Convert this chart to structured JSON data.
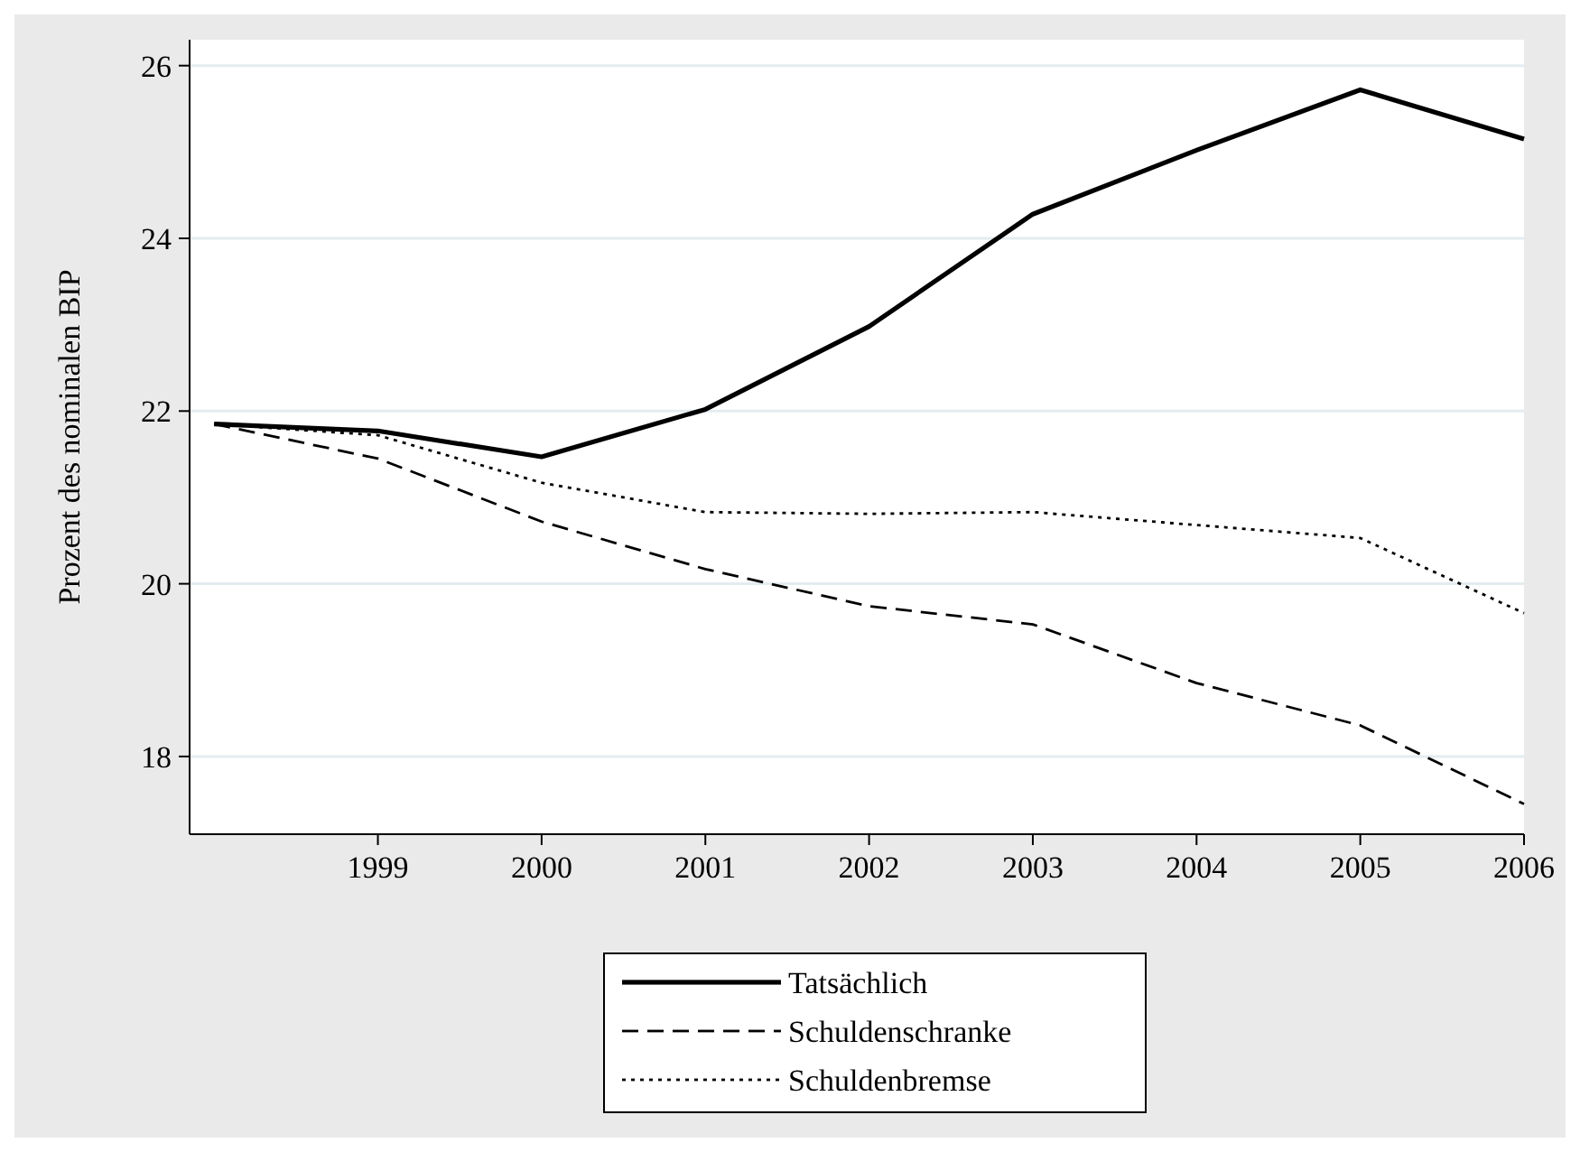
{
  "chart_data": {
    "type": "line",
    "ylabel": "Prozent des nominalen BIP",
    "x": [
      1998,
      1999,
      2000,
      2001,
      2002,
      2003,
      2004,
      2005,
      2006
    ],
    "xlim": [
      1997.85,
      2006
    ],
    "xticks": [
      1999,
      2000,
      2001,
      2002,
      2003,
      2004,
      2005,
      2006
    ],
    "ylim": [
      17.1,
      26.3
    ],
    "yticks": [
      18,
      20,
      22,
      24,
      26
    ],
    "grid": "y",
    "legend": "bottom",
    "marker": "none",
    "series": [
      {
        "name": "Tatsächlich",
        "color": "#000000",
        "line_style": "solid",
        "values": [
          21.85,
          21.77,
          21.47,
          22.02,
          22.98,
          24.28,
          25.02,
          25.72,
          25.15
        ]
      },
      {
        "name": "Schuldenschranke",
        "color": "#000000",
        "line_style": "dashed",
        "values": [
          21.85,
          21.45,
          20.72,
          20.17,
          19.74,
          19.53,
          18.85,
          18.36,
          17.45
        ]
      },
      {
        "name": "Schuldenbremse",
        "color": "#000000",
        "line_style": "dotted",
        "values": [
          21.85,
          21.72,
          21.17,
          20.83,
          20.81,
          20.83,
          20.68,
          20.53,
          19.66
        ]
      }
    ]
  }
}
